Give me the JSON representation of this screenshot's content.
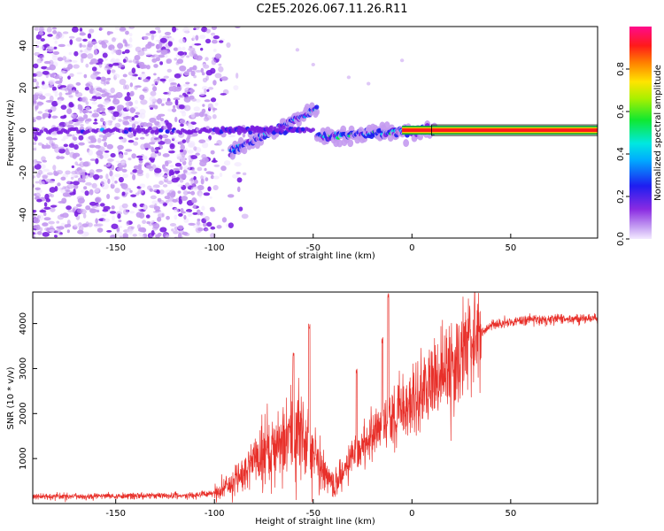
{
  "title": "C2E5.2026.067.11.26.R11",
  "colors": {
    "snr_line": "#e8302a",
    "axis": "#000000"
  },
  "chart_data": [
    {
      "type": "heatmap",
      "name": "spectrogram",
      "xlabel": "Height of straight line (km)",
      "ylabel": "Frequency (Hz)",
      "xlim": [
        -192,
        94
      ],
      "ylim": [
        -51,
        49
      ],
      "x_ticks": [
        -150,
        -100,
        -50,
        0,
        50
      ],
      "y_ticks": [
        -40,
        -20,
        0,
        20,
        40
      ],
      "colorbar": {
        "label": "Normalized spectral amplitude",
        "range": [
          0,
          1
        ],
        "ticks": [
          "0.0",
          "0.2",
          "0.4",
          "0.6",
          "0.8"
        ],
        "colormap": "hsv-like: 0 white/violet, 0.2 blue, 0.4 cyan, 0.6 green, 0.8 yellow/orange, 1.0 red/magenta"
      },
      "description_features": {
        "noise_region_x": [
          -192,
          -88
        ],
        "tone_center_hz": 0,
        "rising_chirp": {
          "x": [
            -92,
            -48
          ],
          "freq_hz": [
            -10,
            10
          ]
        },
        "steady_tone_x": [
          -5,
          94
        ]
      }
    },
    {
      "type": "line",
      "name": "snr",
      "xlabel": "Height of straight line (km)",
      "ylabel": "SNR (10 * v/v)",
      "xlim": [
        -192,
        94
      ],
      "ylim": [
        0,
        4700
      ],
      "x_ticks": [
        -150,
        -100,
        -50,
        0,
        50
      ],
      "y_ticks": [
        1000,
        2000,
        3000,
        4000
      ],
      "envelope_points": [
        {
          "x": -192,
          "y": 150
        },
        {
          "x": -150,
          "y": 170
        },
        {
          "x": -110,
          "y": 180
        },
        {
          "x": -100,
          "y": 250
        },
        {
          "x": -90,
          "y": 500
        },
        {
          "x": -80,
          "y": 900
        },
        {
          "x": -70,
          "y": 1300
        },
        {
          "x": -60,
          "y": 1600
        },
        {
          "x": -55,
          "y": 1500
        },
        {
          "x": -50,
          "y": 1100
        },
        {
          "x": -45,
          "y": 700
        },
        {
          "x": -40,
          "y": 400
        },
        {
          "x": -35,
          "y": 700
        },
        {
          "x": -30,
          "y": 1100
        },
        {
          "x": -20,
          "y": 1500
        },
        {
          "x": -10,
          "y": 1900
        },
        {
          "x": 0,
          "y": 2300
        },
        {
          "x": 10,
          "y": 2700
        },
        {
          "x": 20,
          "y": 3100
        },
        {
          "x": 30,
          "y": 3600
        },
        {
          "x": 40,
          "y": 3950
        },
        {
          "x": 50,
          "y": 4050
        },
        {
          "x": 70,
          "y": 4100
        },
        {
          "x": 94,
          "y": 4100
        }
      ],
      "peaks": [
        {
          "x": -52,
          "y": 4000
        },
        {
          "x": -60,
          "y": 3400
        },
        {
          "x": -12,
          "y": 4700
        },
        {
          "x": -15,
          "y": 3700
        },
        {
          "x": -28,
          "y": 3000
        }
      ]
    }
  ]
}
